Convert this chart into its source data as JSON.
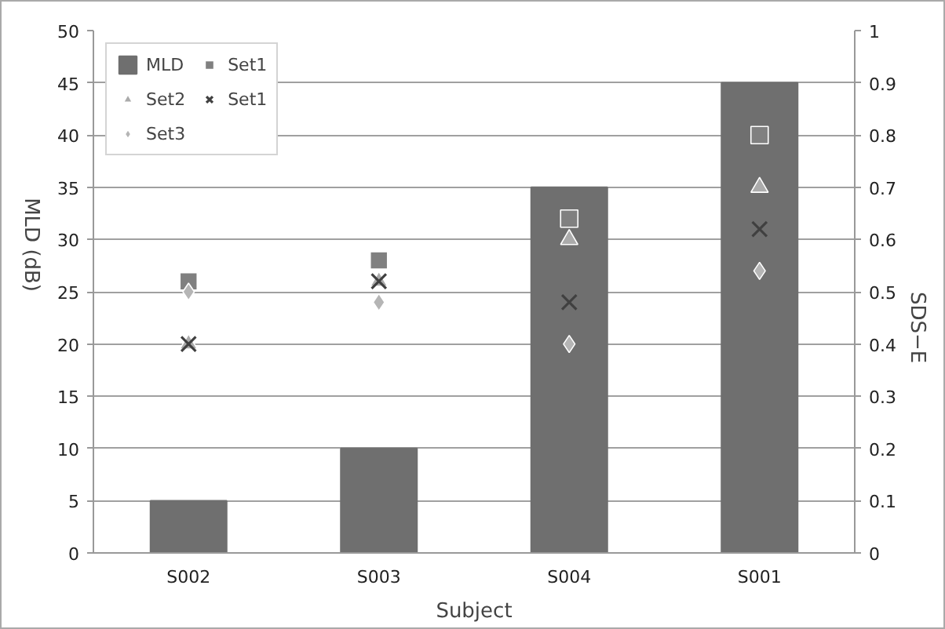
{
  "chart_data": {
    "type": "bar",
    "xlabel": "Subject",
    "ylabel": "MLD (dB)",
    "y2label": "SDS−E",
    "categories": [
      "S002",
      "S003",
      "S004",
      "S001"
    ],
    "ylim": [
      0,
      50
    ],
    "yticks": [
      0,
      5,
      10,
      15,
      20,
      25,
      30,
      35,
      40,
      45,
      50
    ],
    "y2lim": [
      0,
      1
    ],
    "y2ticks": [
      0,
      0.1,
      0.2,
      0.3,
      0.4,
      0.5,
      0.6,
      0.7,
      0.8,
      0.9,
      1
    ],
    "grid": "y",
    "legend": "top left",
    "series": [
      {
        "name": "MLD",
        "color": "#6f6f6f",
        "values": [
          5,
          10,
          35,
          45
        ]
      },
      {
        "name": "Set1",
        "type": "scatter",
        "axis": "y2",
        "marker": "square",
        "color": "#808080",
        "values": [
          0.52,
          0.56,
          0.64,
          0.8
        ]
      },
      {
        "name": "Set2",
        "type": "scatter",
        "axis": "y2",
        "marker": "triangle",
        "color": "#ababab",
        "values": [
          0.4,
          0.52,
          0.6,
          0.7
        ]
      },
      {
        "name": "Set1",
        "type": "scatter",
        "axis": "y2",
        "marker": "cross",
        "color": "#404040",
        "values": [
          0.4,
          0.52,
          0.48,
          0.62
        ]
      },
      {
        "name": "Set3",
        "type": "scatter",
        "axis": "y2",
        "marker": "diamond",
        "color": "#b5b5b5",
        "values": [
          0.5,
          0.48,
          0.4,
          0.54
        ]
      }
    ]
  }
}
